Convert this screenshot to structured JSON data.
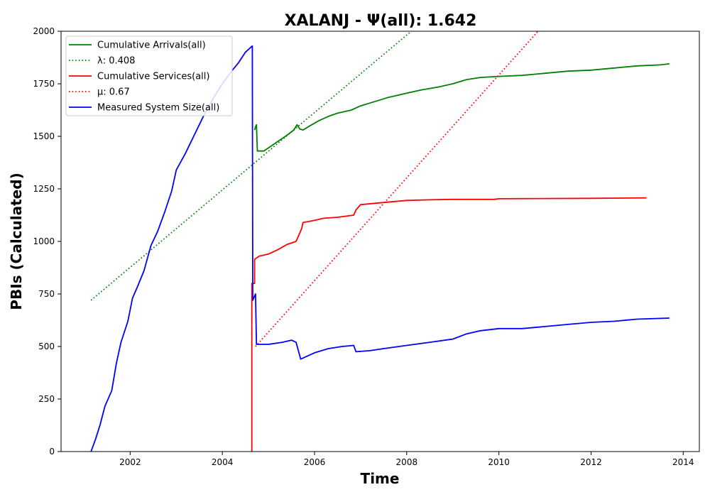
{
  "chart_data": {
    "type": "line",
    "title": "XALANJ -  Ψ(all): 1.642",
    "xlabel": "Time",
    "ylabel": "PBIs (Calculated)",
    "xlim": [
      2000.5,
      2014.35
    ],
    "ylim": [
      0,
      2000
    ],
    "x_ticks": [
      2002,
      2004,
      2006,
      2008,
      2010,
      2012,
      2014
    ],
    "y_ticks": [
      0,
      250,
      500,
      750,
      1000,
      1250,
      1500,
      1750,
      2000
    ],
    "grid": false,
    "legend_position": "top-left",
    "series": [
      {
        "name": "Cumulative Arrivals(all)",
        "style": "solid",
        "color": "#008000",
        "points": [
          [
            2004.7,
            1530
          ],
          [
            2004.72,
            1545
          ],
          [
            2004.74,
            1555
          ],
          [
            2004.76,
            1430
          ],
          [
            2004.9,
            1430
          ],
          [
            2005.0,
            1445
          ],
          [
            2005.2,
            1475
          ],
          [
            2005.4,
            1505
          ],
          [
            2005.55,
            1530
          ],
          [
            2005.62,
            1555
          ],
          [
            2005.68,
            1535
          ],
          [
            2005.75,
            1530
          ],
          [
            2005.9,
            1550
          ],
          [
            2006.1,
            1575
          ],
          [
            2006.3,
            1595
          ],
          [
            2006.5,
            1610
          ],
          [
            2006.8,
            1625
          ],
          [
            2007.0,
            1645
          ],
          [
            2007.3,
            1665
          ],
          [
            2007.6,
            1685
          ],
          [
            2008.0,
            1705
          ],
          [
            2008.3,
            1720
          ],
          [
            2008.7,
            1735
          ],
          [
            2009.0,
            1750
          ],
          [
            2009.3,
            1770
          ],
          [
            2009.6,
            1780
          ],
          [
            2010.0,
            1785
          ],
          [
            2010.5,
            1790
          ],
          [
            2011.0,
            1800
          ],
          [
            2011.5,
            1810
          ],
          [
            2012.0,
            1815
          ],
          [
            2012.5,
            1825
          ],
          [
            2013.0,
            1835
          ],
          [
            2013.5,
            1840
          ],
          [
            2013.7,
            1845
          ]
        ]
      },
      {
        "name": "λ: 0.408",
        "style": "dotted",
        "color": "#008000",
        "points": [
          [
            2001.15,
            720
          ],
          [
            2008.1,
            2000
          ]
        ]
      },
      {
        "name": "Cumulative Services(all)",
        "style": "solid",
        "color": "#ff0000",
        "points": [
          [
            2004.64,
            0
          ],
          [
            2004.64,
            800
          ],
          [
            2004.7,
            800
          ],
          [
            2004.7,
            915
          ],
          [
            2004.8,
            930
          ],
          [
            2005.0,
            940
          ],
          [
            2005.2,
            960
          ],
          [
            2005.4,
            985
          ],
          [
            2005.6,
            1000
          ],
          [
            2005.68,
            1040
          ],
          [
            2005.72,
            1060
          ],
          [
            2005.75,
            1090
          ],
          [
            2006.0,
            1100
          ],
          [
            2006.2,
            1110
          ],
          [
            2006.5,
            1115
          ],
          [
            2006.85,
            1125
          ],
          [
            2006.9,
            1150
          ],
          [
            2007.0,
            1175
          ],
          [
            2007.5,
            1185
          ],
          [
            2008.0,
            1195
          ],
          [
            2008.5,
            1198
          ],
          [
            2009.0,
            1200
          ],
          [
            2009.9,
            1200
          ],
          [
            2010.0,
            1203
          ],
          [
            2011.0,
            1204
          ],
          [
            2012.0,
            1205
          ],
          [
            2013.2,
            1207
          ]
        ]
      },
      {
        "name": "μ: 0.67",
        "style": "dotted",
        "color": "#ff0000",
        "points": [
          [
            2004.72,
            500
          ],
          [
            2010.85,
            2000
          ]
        ]
      },
      {
        "name": "Measured System Size(all)",
        "style": "solid",
        "color": "#0000ff",
        "points": [
          [
            2001.15,
            0
          ],
          [
            2001.25,
            60
          ],
          [
            2001.35,
            130
          ],
          [
            2001.45,
            215
          ],
          [
            2001.6,
            290
          ],
          [
            2001.7,
            420
          ],
          [
            2001.8,
            520
          ],
          [
            2001.95,
            620
          ],
          [
            2002.05,
            730
          ],
          [
            2002.15,
            780
          ],
          [
            2002.3,
            860
          ],
          [
            2002.45,
            980
          ],
          [
            2002.6,
            1050
          ],
          [
            2002.75,
            1140
          ],
          [
            2002.9,
            1240
          ],
          [
            2003.0,
            1340
          ],
          [
            2003.2,
            1420
          ],
          [
            2003.4,
            1510
          ],
          [
            2003.6,
            1600
          ],
          [
            2003.8,
            1680
          ],
          [
            2004.0,
            1750
          ],
          [
            2004.2,
            1810
          ],
          [
            2004.35,
            1850
          ],
          [
            2004.5,
            1900
          ],
          [
            2004.6,
            1920
          ],
          [
            2004.65,
            1930
          ],
          [
            2004.66,
            720
          ],
          [
            2004.72,
            750
          ],
          [
            2004.74,
            510
          ],
          [
            2005.0,
            510
          ],
          [
            2005.3,
            520
          ],
          [
            2005.5,
            530
          ],
          [
            2005.6,
            520
          ],
          [
            2005.7,
            440
          ],
          [
            2006.0,
            470
          ],
          [
            2006.3,
            490
          ],
          [
            2006.6,
            500
          ],
          [
            2006.85,
            505
          ],
          [
            2006.9,
            475
          ],
          [
            2007.2,
            480
          ],
          [
            2007.5,
            490
          ],
          [
            2008.0,
            505
          ],
          [
            2008.5,
            520
          ],
          [
            2009.0,
            535
          ],
          [
            2009.3,
            560
          ],
          [
            2009.6,
            575
          ],
          [
            2010.0,
            585
          ],
          [
            2010.5,
            585
          ],
          [
            2011.0,
            595
          ],
          [
            2011.5,
            605
          ],
          [
            2012.0,
            615
          ],
          [
            2012.5,
            620
          ],
          [
            2013.0,
            630
          ],
          [
            2013.7,
            635
          ]
        ]
      }
    ]
  }
}
